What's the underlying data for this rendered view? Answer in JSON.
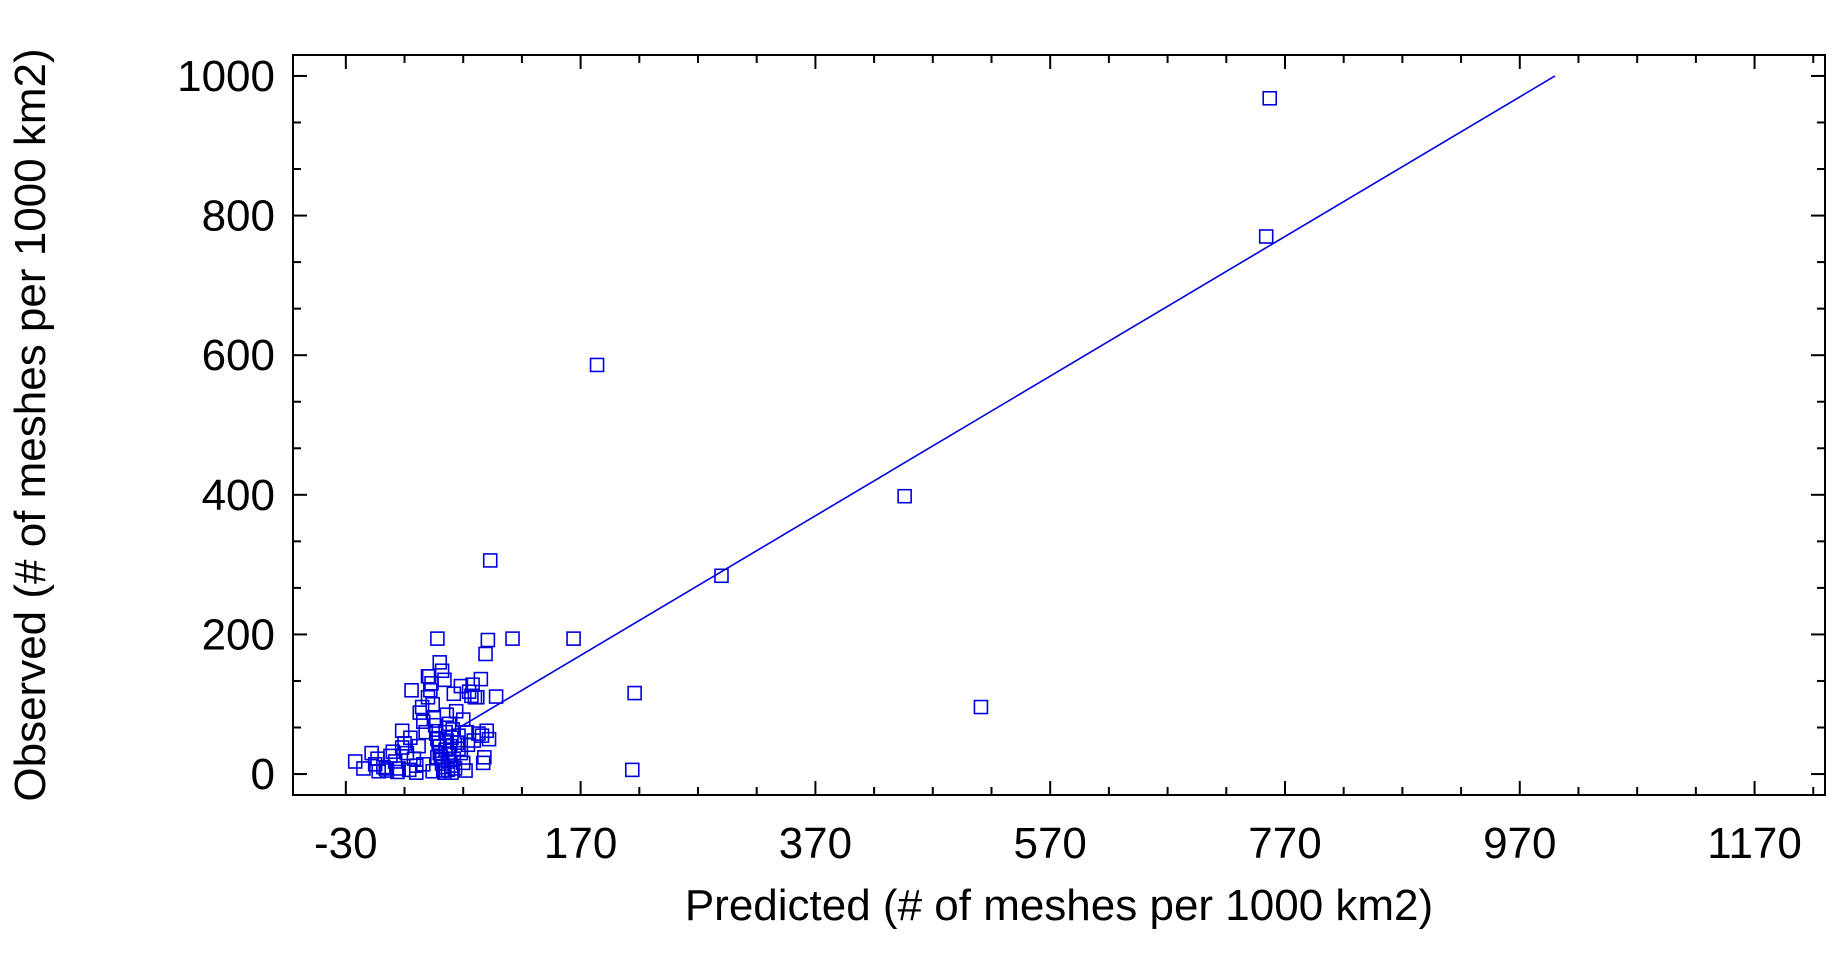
{
  "chart_data": {
    "type": "scatter",
    "xlabel": "Predicted (# of meshes per 1000 km2)",
    "ylabel": "Observed (# of meshes per 1000 km2)",
    "xlim": [
      -75,
      1230
    ],
    "ylim": [
      -30,
      1030
    ],
    "xticks": [
      -30,
      170,
      370,
      570,
      770,
      970,
      1170
    ],
    "xtick_labels": [
      "-30",
      "170",
      "370",
      "570",
      "770",
      "970",
      "1170"
    ],
    "yticks": [
      0,
      200,
      400,
      600,
      800,
      1000
    ],
    "ytick_labels": [
      "0",
      "200",
      "400",
      "600",
      "800",
      "1000"
    ],
    "grid": false,
    "color": "#0000dd",
    "series": [
      {
        "marker": "open-square",
        "points": [
          [
            757,
            968
          ],
          [
            754,
            770
          ],
          [
            184,
            586
          ],
          [
            446,
            398
          ],
          [
            93,
            306
          ],
          [
            290,
            284
          ],
          [
            48,
            194
          ],
          [
            91,
            192
          ],
          [
            112,
            194
          ],
          [
            164,
            194
          ],
          [
            89,
            172
          ],
          [
            511,
            96
          ],
          [
            216,
            116
          ],
          [
            214,
            6
          ],
          [
            98,
            111
          ],
          [
            -22,
            18
          ],
          [
            -15,
            8
          ],
          [
            -8,
            30
          ],
          [
            -5,
            14
          ],
          [
            -3,
            22
          ],
          [
            2,
            10
          ],
          [
            5,
            5
          ],
          [
            8,
            26
          ],
          [
            10,
            32
          ],
          [
            12,
            18
          ],
          [
            15,
            8
          ],
          [
            18,
            38
          ],
          [
            20,
            44
          ],
          [
            22,
            30
          ],
          [
            18,
            62
          ],
          [
            25,
            52
          ],
          [
            28,
            22
          ],
          [
            30,
            12
          ],
          [
            32,
            40
          ],
          [
            33,
            88
          ],
          [
            35,
            96
          ],
          [
            36,
            75
          ],
          [
            38,
            60
          ],
          [
            40,
            110
          ],
          [
            40,
            140
          ],
          [
            41,
            140
          ],
          [
            42,
            120
          ],
          [
            43,
            130
          ],
          [
            44,
            100
          ],
          [
            45,
            80
          ],
          [
            46,
            70
          ],
          [
            47,
            58
          ],
          [
            48,
            50
          ],
          [
            49,
            45
          ],
          [
            50,
            40
          ],
          [
            50,
            30
          ],
          [
            51,
            25
          ],
          [
            52,
            20
          ],
          [
            52,
            15
          ],
          [
            53,
            10
          ],
          [
            53,
            5
          ],
          [
            54,
            2
          ],
          [
            55,
            35
          ],
          [
            55,
            60
          ],
          [
            56,
            85
          ],
          [
            56,
            48
          ],
          [
            57,
            18
          ],
          [
            57,
            6
          ],
          [
            58,
            28
          ],
          [
            58,
            72
          ],
          [
            59,
            40
          ],
          [
            60,
            12
          ],
          [
            60,
            52
          ],
          [
            61,
            64
          ],
          [
            62,
            22
          ],
          [
            63,
            8
          ],
          [
            64,
            90
          ],
          [
            65,
            45
          ],
          [
            66,
            55
          ],
          [
            68,
            30
          ],
          [
            70,
            16
          ],
          [
            72,
            5
          ],
          [
            74,
            42
          ],
          [
            75,
            118
          ],
          [
            77,
            112
          ],
          [
            78,
            128
          ],
          [
            80,
            110
          ],
          [
            82,
            110
          ],
          [
            85,
            136
          ],
          [
            86,
            55
          ],
          [
            88,
            24
          ],
          [
            90,
            62
          ],
          [
            92,
            50
          ],
          [
            70,
            78
          ],
          [
            66,
            36
          ],
          [
            48,
            24
          ],
          [
            36,
            14
          ],
          [
            24,
            6
          ],
          [
            14,
            3
          ],
          [
            4,
            8
          ],
          [
            -2,
            4
          ],
          [
            52,
            148
          ],
          [
            50,
            160
          ],
          [
            54,
            135
          ],
          [
            62,
            115
          ],
          [
            26,
            120
          ],
          [
            68,
            126
          ],
          [
            73,
            60
          ],
          [
            79,
            48
          ],
          [
            83,
            58
          ],
          [
            87,
            16
          ],
          [
            60,
            2
          ],
          [
            44,
            4
          ],
          [
            30,
            2
          ]
        ]
      }
    ],
    "fit_line": {
      "x": [
        65,
        1000
      ],
      "y": [
        65,
        1000
      ]
    }
  }
}
